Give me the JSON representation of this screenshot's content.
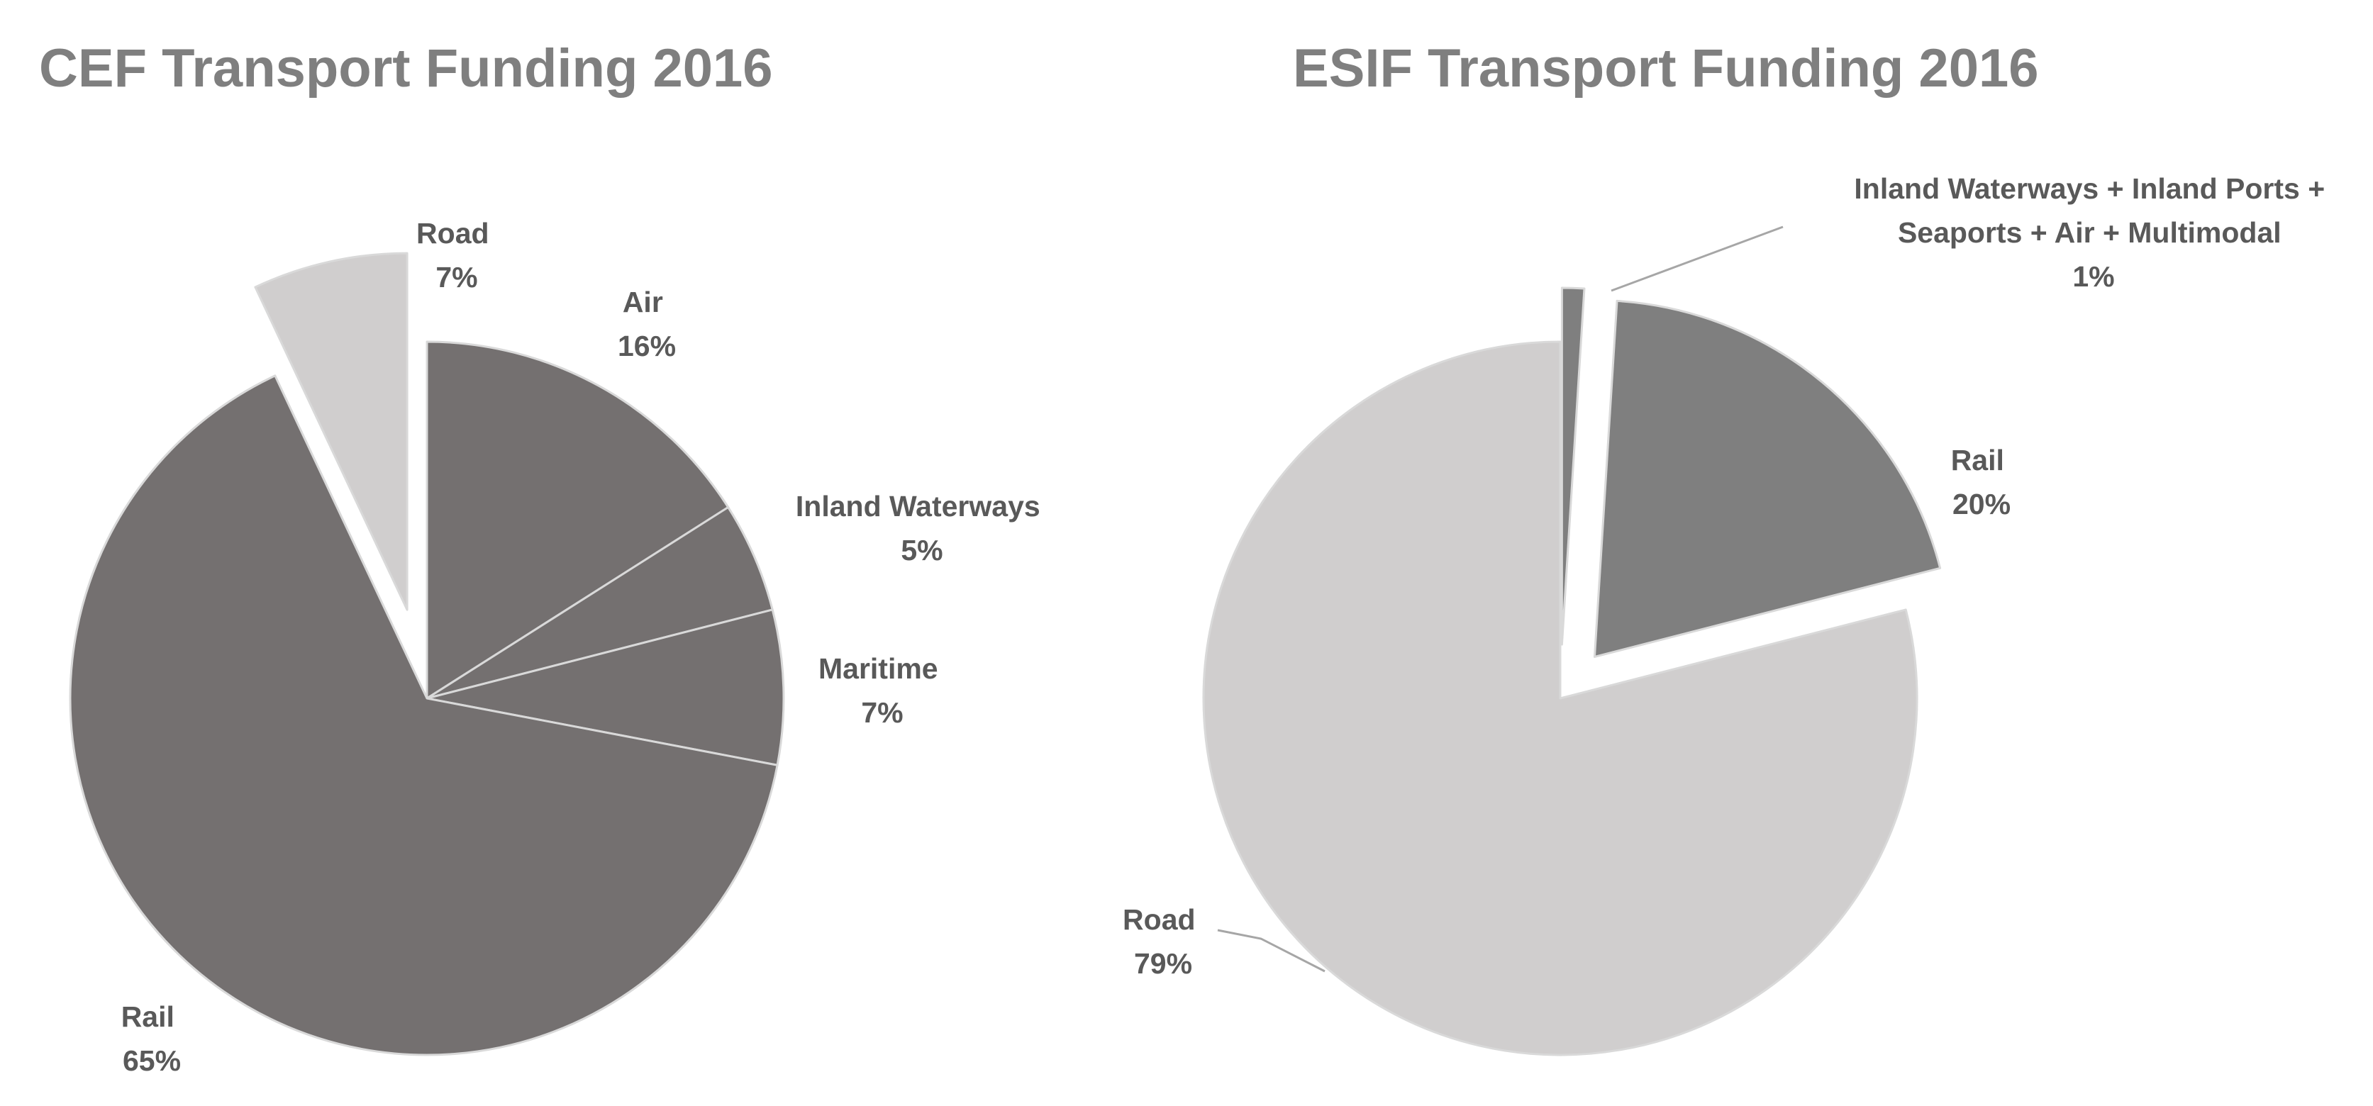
{
  "chart_data": [
    {
      "type": "pie",
      "title": "CEF Transport Funding 2016",
      "slices": [
        {
          "label": "Air",
          "percent_label": "16%",
          "value": 16,
          "color": "#747070",
          "exploded": false
        },
        {
          "label": "Inland Waterways",
          "percent_label": "5%",
          "value": 5,
          "color": "#747070",
          "exploded": false
        },
        {
          "label": "Maritime",
          "percent_label": "7%",
          "value": 7,
          "color": "#747070",
          "exploded": false
        },
        {
          "label": "Rail",
          "percent_label": "65%",
          "value": 65,
          "color": "#747070",
          "exploded": false
        },
        {
          "label": "Road",
          "percent_label": "7%",
          "value": 7,
          "color": "#d0cece",
          "exploded": true
        }
      ]
    },
    {
      "type": "pie",
      "title": "ESIF Transport Funding 2016",
      "slices": [
        {
          "label": "Inland Waterways + Inland Ports + Seaports + Air + Multimodal",
          "label_lines": [
            "Inland Waterways + Inland Ports +",
            "Seaports + Air + Multimodal"
          ],
          "percent_label": "1%",
          "value": 1,
          "color": "#7f7f7f",
          "exploded": true
        },
        {
          "label": "Rail",
          "percent_label": "20%",
          "value": 20,
          "color": "#7f7f7f",
          "exploded": true
        },
        {
          "label": "Road",
          "percent_label": "79%",
          "value": 79,
          "color": "#d0cece",
          "exploded": false
        }
      ]
    }
  ]
}
